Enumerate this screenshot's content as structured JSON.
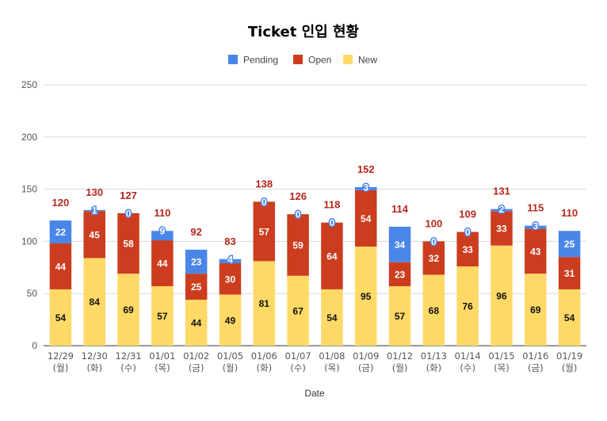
{
  "chart_data": {
    "type": "bar",
    "stacked": true,
    "title": "Ticket 인입 현황",
    "xlabel": "Date",
    "ylabel": "",
    "ylim": [
      0,
      250
    ],
    "yticks": [
      0,
      50,
      100,
      150,
      200,
      250
    ],
    "grid": true,
    "legend_position": "top",
    "categories": [
      [
        "12/29",
        "(월)"
      ],
      [
        "12/30",
        "(화)"
      ],
      [
        "12/31",
        "(수)"
      ],
      [
        "01/01",
        "(목)"
      ],
      [
        "01/02",
        "(금)"
      ],
      [
        "01/05",
        "(월)"
      ],
      [
        "01/06",
        "(화)"
      ],
      [
        "01/07",
        "(수)"
      ],
      [
        "01/08",
        "(목)"
      ],
      [
        "01/09",
        "(금)"
      ],
      [
        "01/12",
        "(월)"
      ],
      [
        "01/13",
        "(화)"
      ],
      [
        "01/14",
        "(수)"
      ],
      [
        "01/15",
        "(목)"
      ],
      [
        "01/16",
        "(금)"
      ],
      [
        "01/19",
        "(월)"
      ]
    ],
    "series": [
      {
        "name": "New",
        "color": "#ffd966",
        "values": [
          54,
          84,
          69,
          57,
          44,
          49,
          81,
          67,
          54,
          95,
          57,
          68,
          76,
          96,
          69,
          54
        ]
      },
      {
        "name": "Open",
        "color": "#cc3d1f",
        "values": [
          44,
          45,
          58,
          44,
          25,
          30,
          57,
          59,
          64,
          54,
          23,
          32,
          33,
          33,
          43,
          31
        ]
      },
      {
        "name": "Pending",
        "color": "#4a86e8",
        "values": [
          22,
          1,
          0,
          9,
          23,
          4,
          0,
          0,
          0,
          3,
          34,
          0,
          0,
          2,
          3,
          25
        ]
      }
    ],
    "legend_order": [
      "Pending",
      "Open",
      "New"
    ],
    "totals": [
      120,
      130,
      127,
      110,
      92,
      83,
      138,
      126,
      118,
      152,
      114,
      100,
      109,
      131,
      115,
      110
    ],
    "totals_color": "#b7261b"
  }
}
